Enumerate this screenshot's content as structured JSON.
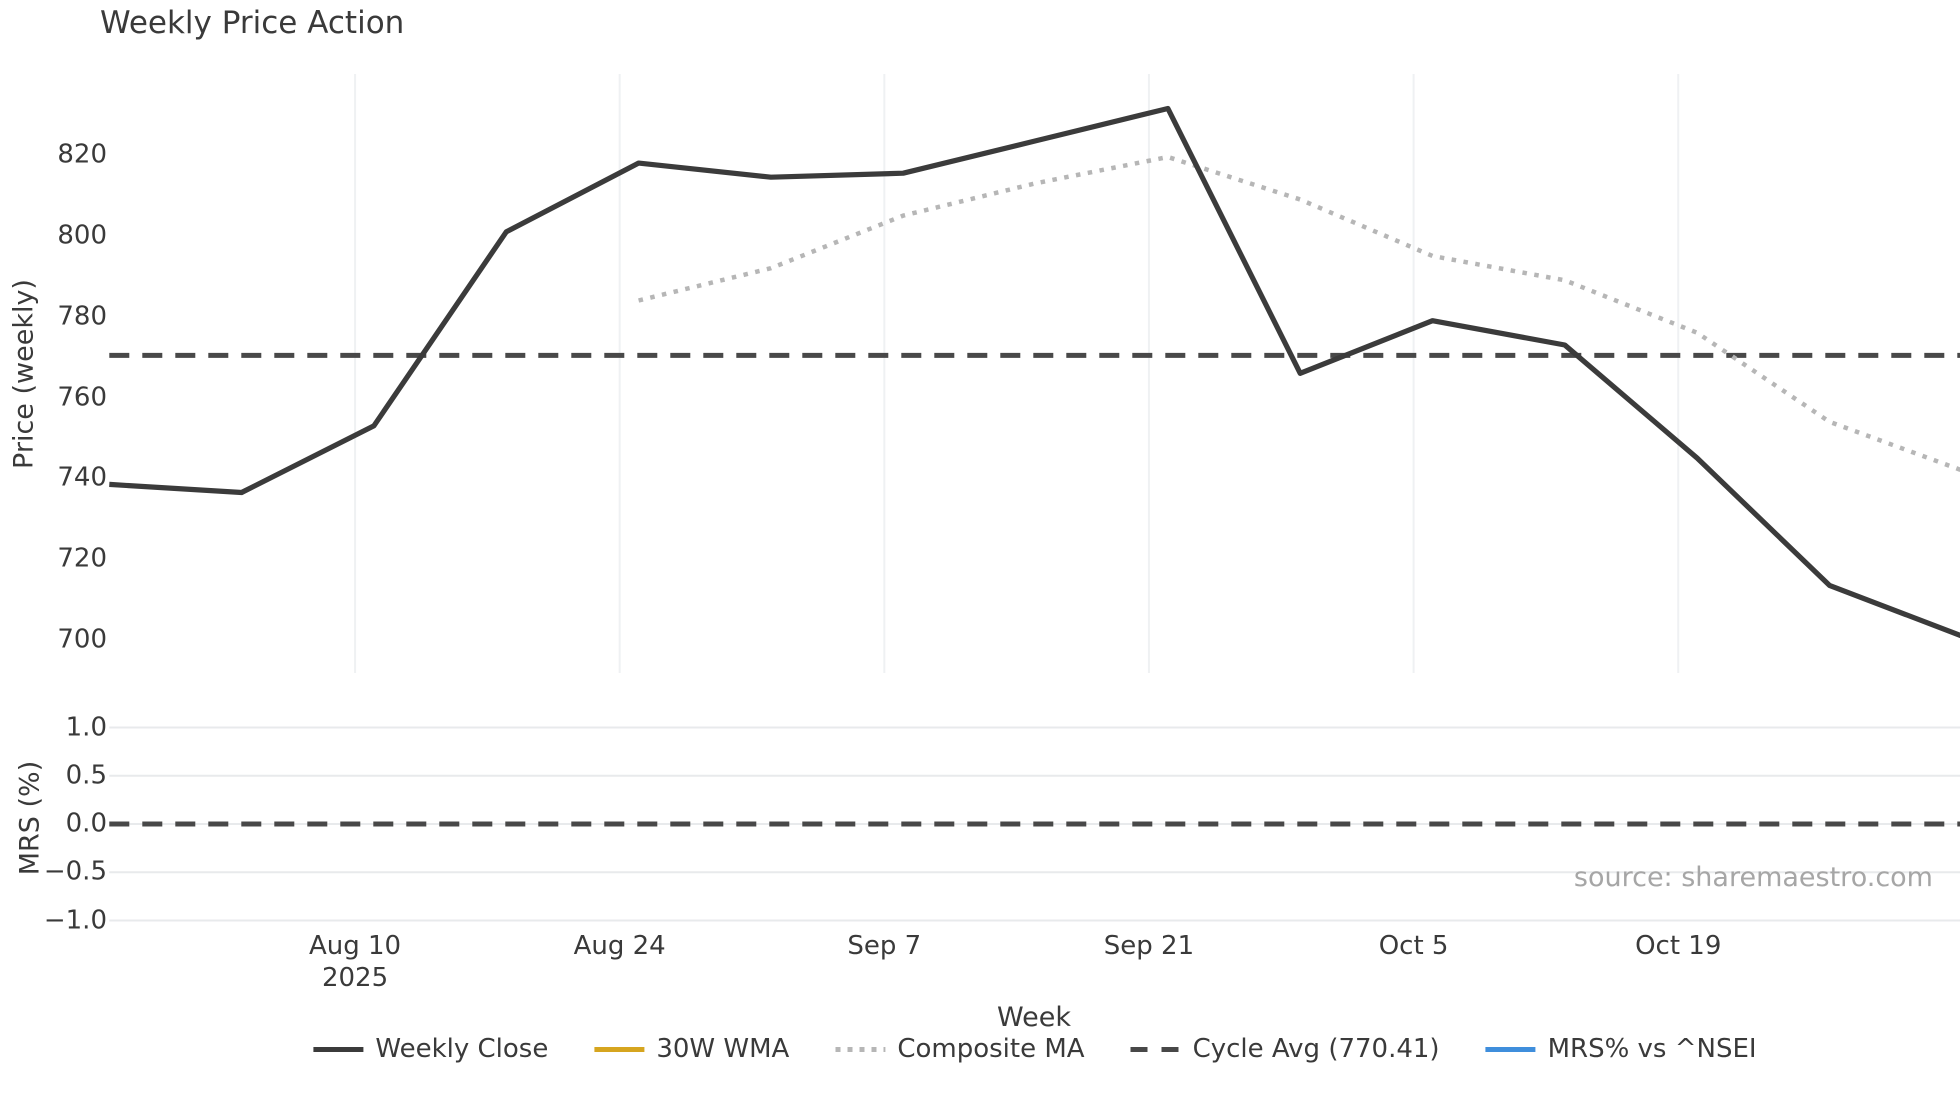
{
  "chart_data": {
    "type": "line",
    "title": "Weekly Price Action",
    "xlabel": "Week",
    "source_note": "source: sharemaestro.com",
    "x_unit": "days from first weekly point (points are 7 days apart)",
    "xlim_days": [
      0,
      98
    ],
    "x_ticks": {
      "positions_days": [
        13,
        27,
        41,
        55,
        69,
        83
      ],
      "labels": [
        "Aug 10",
        "Aug 24",
        "Sep 7",
        "Sep 21",
        "Oct 5",
        "Oct 19"
      ],
      "year_label": "2025",
      "year_tick_index": 0
    },
    "panels": [
      {
        "id": "price",
        "ylabel": "Price (weekly)",
        "ylim": [
          691.8,
          839.8
        ],
        "grid": "vertical-only",
        "y_ticks": {
          "values": [
            820,
            800,
            780,
            760,
            740,
            720,
            700
          ],
          "labels": [
            "820",
            "800",
            "780",
            "760",
            "740",
            "720",
            "700"
          ]
        },
        "series": [
          {
            "name": "Weekly Close",
            "type": "line",
            "line_style": "solid",
            "color": "#3b3b3b",
            "width": 5.2,
            "x_days": [
              0,
              7,
              14,
              21,
              28,
              35,
              42,
              49,
              56,
              63,
              70,
              77,
              84,
              91,
              98
            ],
            "values": [
              738.5,
              736.5,
              753,
              801,
              818,
              814.5,
              815.5,
              823.5,
              831.5,
              766,
              779,
              773,
              745,
              713.5,
              701
            ]
          },
          {
            "name": "Composite MA",
            "type": "line",
            "line_style": "dotted",
            "color": "#b6b6b6",
            "width": 4.5,
            "x_days": [
              28,
              35,
              42,
              49,
              56,
              63,
              70,
              77,
              84,
              91,
              98
            ],
            "values": [
              784,
              792,
              805,
              813,
              819.5,
              809,
              795,
              789,
              776,
              754,
              742
            ]
          },
          {
            "name": "Cycle Avg (770.41)",
            "type": "hline",
            "line_style": "dashed",
            "color": "#484848",
            "width": 5,
            "value": 770.41
          }
        ]
      },
      {
        "id": "mrs",
        "ylabel": "MRS (%)",
        "ylim": [
          -1.06,
          1.18
        ],
        "grid": "horizontal-only",
        "y_ticks": {
          "values": [
            1.0,
            0.5,
            0.0,
            -0.5,
            -1.0
          ],
          "labels": [
            "1.0",
            "0.5",
            "0.0",
            "−0.5",
            "−1.0"
          ]
        },
        "series": [
          {
            "name": "zero-reference",
            "type": "hline",
            "line_style": "dashed",
            "color": "#484848",
            "width": 5,
            "value": 0.0
          },
          {
            "name": "MRS% vs ^NSEI",
            "type": "line",
            "line_style": "solid",
            "color": "#3f8edc",
            "visible_in_plot": false,
            "note": "listed in legend; no line visible in panel"
          }
        ]
      }
    ],
    "legend": [
      {
        "label": "Weekly Close",
        "swatch": "solid",
        "color": "#3b3b3b"
      },
      {
        "label": "30W WMA",
        "swatch": "solid",
        "color": "#d6a51f"
      },
      {
        "label": "Composite MA",
        "swatch": "dotted",
        "color": "#b6b6b6"
      },
      {
        "label": "Cycle Avg (770.41)",
        "swatch": "dashed",
        "color": "#484848"
      },
      {
        "label": "MRS% vs ^NSEI",
        "swatch": "solid",
        "color": "#3f8edc"
      }
    ],
    "colors": {
      "background": "#ffffff",
      "text": "#3a3a3a",
      "grid_price": "#eff1f3",
      "grid_mrs": "#e8eaec",
      "source_text": "#a6a6a6"
    }
  }
}
